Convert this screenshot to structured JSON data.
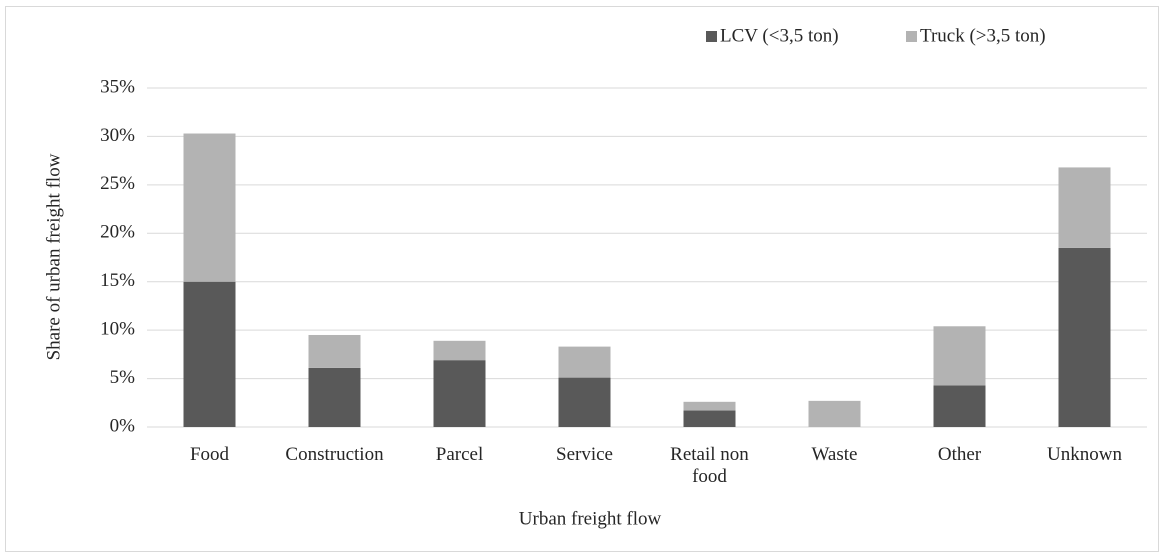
{
  "chart_data": {
    "type": "stacked_bar",
    "x_label": "Urban freight flow",
    "y_label": "Share of urban freight flow",
    "categories": [
      "Food",
      "Construction",
      "Parcel",
      "Service",
      "Retail non food",
      "Waste",
      "Other",
      "Unknown"
    ],
    "series": [
      {
        "name": "LCV (<3,5 ton)",
        "color": "#595959",
        "values": [
          15.0,
          6.1,
          6.9,
          5.1,
          1.7,
          0,
          4.3,
          18.5
        ]
      },
      {
        "name": "Truck (>3,5 ton)",
        "color": "#b3b3b3",
        "values": [
          15.3,
          3.4,
          2.0,
          3.2,
          0.9,
          2.7,
          6.1,
          8.3
        ]
      }
    ],
    "ylim": [
      0,
      35
    ],
    "yticks": [
      {
        "value": 0,
        "label": "0%"
      },
      {
        "value": 5,
        "label": "5%"
      },
      {
        "value": 10,
        "label": "10%"
      },
      {
        "value": 15,
        "label": "15%"
      },
      {
        "value": 20,
        "label": "20%"
      },
      {
        "value": 25,
        "label": "25%"
      },
      {
        "value": 30,
        "label": "30%"
      },
      {
        "value": 35,
        "label": "35%"
      }
    ],
    "grid": true,
    "legend": "top-right"
  }
}
